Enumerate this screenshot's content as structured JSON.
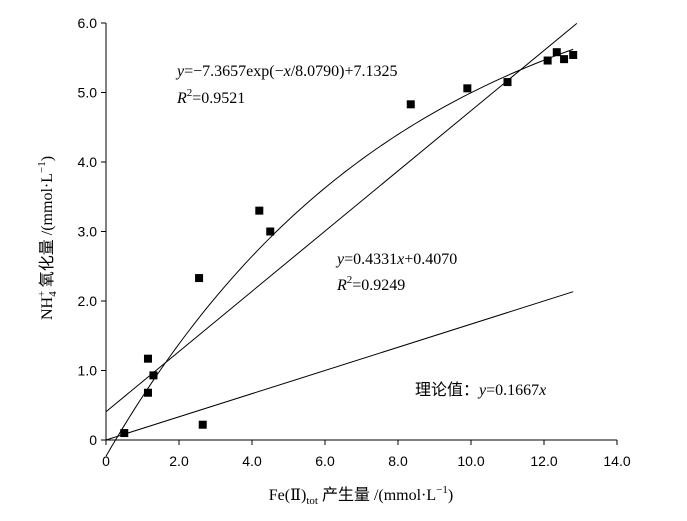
{
  "chart_data": {
    "type": "scatter",
    "xlabel": {
      "prefix": "Fe(Ⅱ)",
      "subscript": "tot",
      "middle": " 产生量 /(mmol·L",
      "superscript": "−1",
      "suffix": ")"
    },
    "ylabel": {
      "prefix": "NH",
      "subscript": "4",
      "superscript": "+",
      "middle": " 氧化量 /(mmol·L",
      "superscript2": "−1",
      "suffix": ")"
    },
    "xlim": [
      0,
      14
    ],
    "ylim": [
      0,
      6
    ],
    "xticks": [
      "0",
      "2.0",
      "4.0",
      "6.0",
      "8.0",
      "10.0",
      "12.0",
      "14.0"
    ],
    "yticks": [
      "0",
      "1.0",
      "2.0",
      "3.0",
      "4.0",
      "5.0",
      "6.0"
    ],
    "points": [
      {
        "x": 0.5,
        "y": 0.1
      },
      {
        "x": 1.15,
        "y": 0.68
      },
      {
        "x": 1.15,
        "y": 1.17
      },
      {
        "x": 1.3,
        "y": 0.93
      },
      {
        "x": 2.55,
        "y": 2.33
      },
      {
        "x": 2.65,
        "y": 0.22
      },
      {
        "x": 4.2,
        "y": 3.3
      },
      {
        "x": 4.5,
        "y": 3.0
      },
      {
        "x": 8.35,
        "y": 4.83
      },
      {
        "x": 9.9,
        "y": 5.06
      },
      {
        "x": 11.0,
        "y": 5.15
      },
      {
        "x": 12.1,
        "y": 5.46
      },
      {
        "x": 12.35,
        "y": 5.58
      },
      {
        "x": 12.55,
        "y": 5.48
      },
      {
        "x": 12.8,
        "y": 5.54
      }
    ],
    "fits": [
      {
        "name": "exponential",
        "equation": {
          "y": "y",
          "body": "=−7.3657exp(−",
          "x": "x",
          "tail": "/8.0790)+7.1325"
        },
        "r2": {
          "label": "R",
          "sup": "2",
          "value": "=0.9521"
        },
        "a": -7.3657,
        "b": 8.079,
        "c": 7.1325,
        "x_range": [
          0,
          12.8
        ]
      },
      {
        "name": "linear",
        "equation": {
          "y": "y",
          "body": "=0.4331",
          "x": "x",
          "tail": "+0.4070"
        },
        "r2": {
          "label": "R",
          "sup": "2",
          "value": "=0.9249"
        },
        "slope": 0.4331,
        "intercept": 0.407,
        "x_range": [
          0,
          12.9
        ]
      },
      {
        "name": "theoretical",
        "label": {
          "text": "理论值：",
          "y": "y",
          "body": "=0.1667",
          "x": "x"
        },
        "slope": 0.1667,
        "intercept": 0,
        "x_range": [
          0,
          12.8
        ]
      }
    ]
  }
}
